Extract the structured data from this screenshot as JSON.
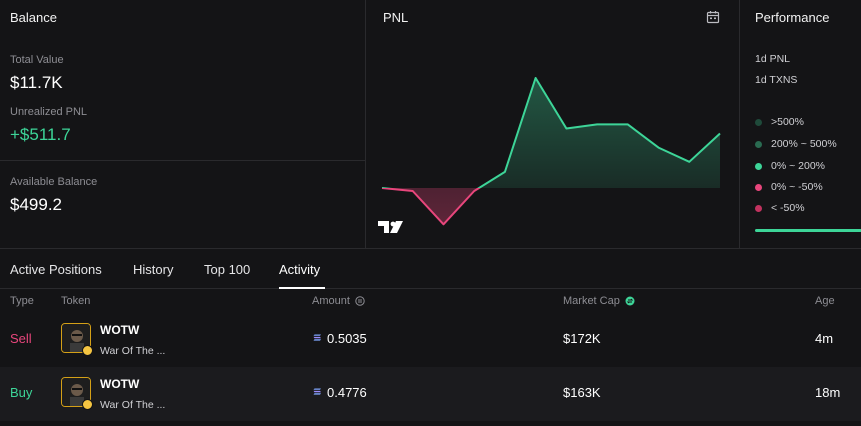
{
  "balance": {
    "title": "Balance",
    "total_value_label": "Total Value",
    "total_value": "$11.7K",
    "unrealized_pnl_label": "Unrealized PNL",
    "unrealized_pnl": "+$511.7",
    "available_label": "Available Balance",
    "available": "$499.2"
  },
  "pnl": {
    "title": "PNL",
    "chart_data": {
      "type": "line",
      "x": [
        0,
        1,
        2,
        3,
        4,
        5,
        6,
        7,
        8,
        9,
        10,
        11
      ],
      "values": [
        0,
        -0.3,
        -3.6,
        -0.3,
        1.6,
        10.9,
        5.9,
        6.3,
        6.3,
        4.0,
        2.6,
        5.4
      ],
      "baseline": 0,
      "positive_color": "#3dd598",
      "negative_color": "#e8467c"
    }
  },
  "performance": {
    "title": "Performance",
    "pnl_1d_label": "1d PNL",
    "txns_1d_label": "1d TXNS",
    "legend": [
      {
        "label": ">500%",
        "color": "#1f4a3a"
      },
      {
        "label": "200% ~ 500%",
        "color": "#2a6b51"
      },
      {
        "label": "0% ~ 200%",
        "color": "#3dd598"
      },
      {
        "label": "0% ~ -50%",
        "color": "#e8467c"
      },
      {
        "label": "< -50%",
        "color": "#c2325f"
      }
    ]
  },
  "tabs": [
    "Active Positions",
    "History",
    "Top 100",
    "Activity"
  ],
  "active_tab": "Activity",
  "table": {
    "headers": {
      "type": "Type",
      "token": "Token",
      "amount": "Amount",
      "mcap": "Market Cap",
      "age": "Age"
    },
    "rows": [
      {
        "type": "Sell",
        "symbol": "WOTW",
        "name": "War Of The ...",
        "amount": "0.5035",
        "mcap": "$172K",
        "age": "4m"
      },
      {
        "type": "Buy",
        "symbol": "WOTW",
        "name": "War Of The ...",
        "amount": "0.4776",
        "mcap": "$163K",
        "age": "18m"
      }
    ]
  }
}
